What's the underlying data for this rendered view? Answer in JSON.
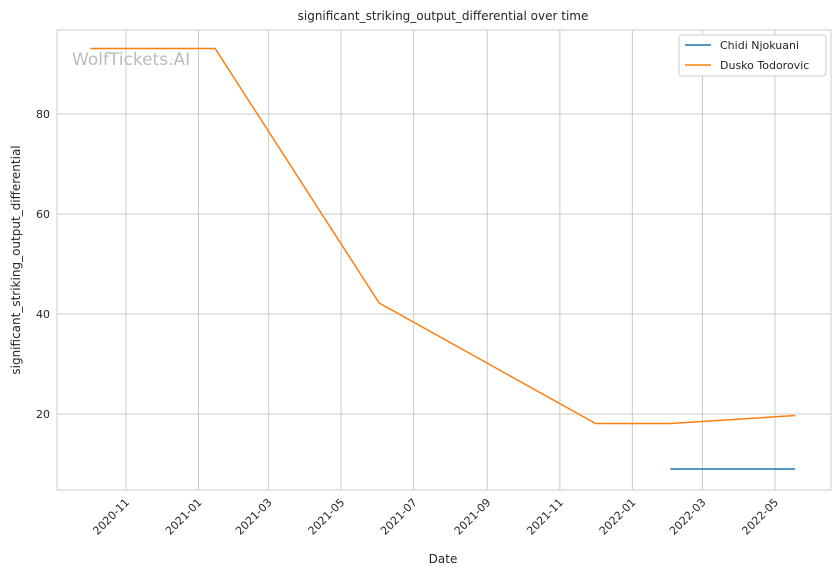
{
  "chart_data": {
    "type": "line",
    "title": "significant_striking_output_differential over time",
    "xlabel": "Date",
    "ylabel": "significant_striking_output_differential",
    "watermark": "WolfTickets.AI",
    "x_ticks": [
      "2020-11",
      "2021-01",
      "2021-03",
      "2021-05",
      "2021-07",
      "2021-09",
      "2021-11",
      "2022-01",
      "2022-03",
      "2022-05"
    ],
    "y_ticks": [
      20,
      40,
      60,
      80
    ],
    "xlim": [
      "2020-09-03",
      "2022-06-16"
    ],
    "ylim": [
      4.8,
      97.8
    ],
    "grid": true,
    "legend_position": "top-right",
    "series": [
      {
        "name": "Chidi Njokuani",
        "color": "#1f77b4",
        "points": [
          [
            "2022-02-02",
            9.0
          ],
          [
            "2022-05-18",
            9.0
          ]
        ]
      },
      {
        "name": "Dusko Todorovic",
        "color": "#ff7f0e",
        "points": [
          [
            "2020-10-02",
            93.1
          ],
          [
            "2021-01-15",
            93.1
          ],
          [
            "2021-06-02",
            42.2
          ],
          [
            "2021-12-01",
            18.1
          ],
          [
            "2022-02-02",
            18.1
          ],
          [
            "2022-05-18",
            19.7
          ]
        ]
      }
    ]
  }
}
